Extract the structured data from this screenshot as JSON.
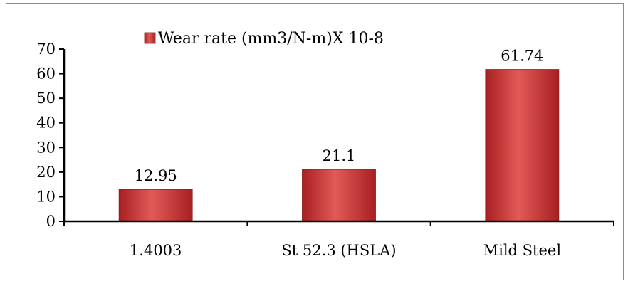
{
  "chart_data": {
    "type": "bar",
    "categories": [
      "1.4003",
      "St 52.3 (HSLA)",
      "Mild Steel"
    ],
    "series": [
      {
        "name": "Wear rate (mm3/N-m)X 10-8",
        "values": [
          12.95,
          21.1,
          61.74
        ]
      }
    ],
    "data_labels": [
      "12.95",
      "21.1",
      "61.74"
    ],
    "yticks": [
      "0",
      "10",
      "20",
      "30",
      "40",
      "50",
      "60",
      "70"
    ],
    "ylim": [
      0,
      70
    ],
    "grid": false,
    "legend": "top-center",
    "colors": {
      "bar": "#d33a3a",
      "bar_light": "#e25a58",
      "bar_dark": "#a81f22",
      "axis": "#000000"
    }
  }
}
